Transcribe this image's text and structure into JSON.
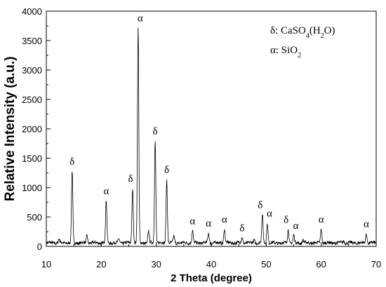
{
  "chart_data": {
    "type": "line",
    "title": "",
    "xlabel": "2 Theta (degree)",
    "ylabel": "Relative Intensity (a.u.)",
    "xlim": [
      10,
      70
    ],
    "ylim": [
      0,
      4000
    ],
    "x_ticks": [
      10,
      20,
      30,
      40,
      50,
      60,
      70
    ],
    "y_ticks": [
      0,
      500,
      1000,
      1500,
      2000,
      2500,
      3000,
      3500,
      4000
    ],
    "grid": false,
    "legend": {
      "placement": "top-right",
      "entries": [
        {
          "symbol": "δ:",
          "formula": "CaSO",
          "sub1": "4",
          "tail": "(H",
          "sub2": "2",
          "tail2": "O)"
        },
        {
          "symbol": "α:",
          "formula": "SiO",
          "sub1": "2",
          "tail": "",
          "sub2": "",
          "tail2": ""
        }
      ]
    },
    "baseline": 60,
    "peaks": [
      {
        "x": 12.3,
        "y": 120,
        "label": ""
      },
      {
        "x": 14.7,
        "y": 1280,
        "label": "δ"
      },
      {
        "x": 17.4,
        "y": 190,
        "label": ""
      },
      {
        "x": 20.9,
        "y": 780,
        "label": "α"
      },
      {
        "x": 23.2,
        "y": 130,
        "label": ""
      },
      {
        "x": 25.7,
        "y": 990,
        "label": "δ"
      },
      {
        "x": 26.7,
        "y": 3720,
        "label": "α"
      },
      {
        "x": 28.6,
        "y": 260,
        "label": ""
      },
      {
        "x": 29.8,
        "y": 1800,
        "label": "δ"
      },
      {
        "x": 31.9,
        "y": 1140,
        "label": "δ"
      },
      {
        "x": 33.2,
        "y": 170,
        "label": ""
      },
      {
        "x": 36.6,
        "y": 270,
        "label": "α"
      },
      {
        "x": 39.5,
        "y": 230,
        "label": "α"
      },
      {
        "x": 42.4,
        "y": 300,
        "label": "α"
      },
      {
        "x": 45.6,
        "y": 150,
        "label": "δ"
      },
      {
        "x": 47.8,
        "y": 110,
        "label": ""
      },
      {
        "x": 49.3,
        "y": 540,
        "label": "δ"
      },
      {
        "x": 50.2,
        "y": 400,
        "label": "α"
      },
      {
        "x": 54.0,
        "y": 290,
        "label": "δ"
      },
      {
        "x": 55.0,
        "y": 190,
        "label": "α"
      },
      {
        "x": 56.7,
        "y": 110,
        "label": ""
      },
      {
        "x": 60.0,
        "y": 300,
        "label": "α"
      },
      {
        "x": 64.1,
        "y": 100,
        "label": ""
      },
      {
        "x": 68.2,
        "y": 220,
        "label": "α"
      }
    ]
  }
}
